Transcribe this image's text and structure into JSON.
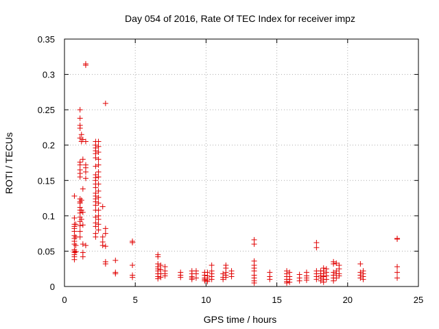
{
  "chart_data": {
    "type": "scatter",
    "title": "Day 054 of 2016, Rate Of TEC Index for receiver impz",
    "xlabel": "GPS time / hours",
    "ylabel": "ROTI / TECUs",
    "xlim": [
      0,
      25
    ],
    "ylim": [
      0,
      0.35
    ],
    "xticks": [
      "0",
      "5",
      "10",
      "15",
      "20",
      "25"
    ],
    "yticks": [
      "0",
      "0.05",
      "0.1",
      "0.15",
      "0.2",
      "0.25",
      "0.3",
      "0.35"
    ],
    "grid": true,
    "marker": "+",
    "marker_color": "#e00000",
    "series": [
      {
        "name": "ROTI",
        "points": [
          [
            0.7,
            0.128
          ],
          [
            0.7,
            0.097
          ],
          [
            0.7,
            0.088
          ],
          [
            0.7,
            0.085
          ],
          [
            0.7,
            0.082
          ],
          [
            0.7,
            0.078
          ],
          [
            0.7,
            0.072
          ],
          [
            0.7,
            0.068
          ],
          [
            0.7,
            0.064
          ],
          [
            0.7,
            0.06
          ],
          [
            0.7,
            0.052
          ],
          [
            0.7,
            0.05
          ],
          [
            0.7,
            0.048
          ],
          [
            0.7,
            0.045
          ],
          [
            0.7,
            0.042
          ],
          [
            0.7,
            0.038
          ],
          [
            0.8,
            0.088
          ],
          [
            0.8,
            0.07
          ],
          [
            0.8,
            0.058
          ],
          [
            0.8,
            0.049
          ],
          [
            1.1,
            0.25
          ],
          [
            1.1,
            0.238
          ],
          [
            1.1,
            0.228
          ],
          [
            1.1,
            0.224
          ],
          [
            1.1,
            0.21
          ],
          [
            1.1,
            0.176
          ],
          [
            1.1,
            0.172
          ],
          [
            1.1,
            0.165
          ],
          [
            1.1,
            0.16
          ],
          [
            1.1,
            0.155
          ],
          [
            1.1,
            0.124
          ],
          [
            1.1,
            0.12
          ],
          [
            1.1,
            0.118
          ],
          [
            1.1,
            0.112
          ],
          [
            1.1,
            0.108
          ],
          [
            1.1,
            0.104
          ],
          [
            1.1,
            0.098
          ],
          [
            1.1,
            0.092
          ],
          [
            1.1,
            0.086
          ],
          [
            1.1,
            0.078
          ],
          [
            1.1,
            0.07
          ],
          [
            1.2,
            0.215
          ],
          [
            1.2,
            0.205
          ],
          [
            1.2,
            0.122
          ],
          [
            1.2,
            0.108
          ],
          [
            1.2,
            0.095
          ],
          [
            1.3,
            0.208
          ],
          [
            1.3,
            0.18
          ],
          [
            1.3,
            0.138
          ],
          [
            1.3,
            0.105
          ],
          [
            1.3,
            0.087
          ],
          [
            1.3,
            0.06
          ],
          [
            1.3,
            0.048
          ],
          [
            1.3,
            0.042
          ],
          [
            1.5,
            0.315
          ],
          [
            1.5,
            0.313
          ],
          [
            1.5,
            0.205
          ],
          [
            1.5,
            0.172
          ],
          [
            1.5,
            0.168
          ],
          [
            1.5,
            0.162
          ],
          [
            1.5,
            0.153
          ],
          [
            1.5,
            0.058
          ],
          [
            2.2,
            0.205
          ],
          [
            2.2,
            0.2
          ],
          [
            2.2,
            0.196
          ],
          [
            2.2,
            0.192
          ],
          [
            2.2,
            0.188
          ],
          [
            2.2,
            0.182
          ],
          [
            2.2,
            0.17
          ],
          [
            2.2,
            0.158
          ],
          [
            2.2,
            0.154
          ],
          [
            2.2,
            0.15
          ],
          [
            2.2,
            0.145
          ],
          [
            2.2,
            0.14
          ],
          [
            2.2,
            0.132
          ],
          [
            2.2,
            0.128
          ],
          [
            2.2,
            0.124
          ],
          [
            2.2,
            0.12
          ],
          [
            2.2,
            0.115
          ],
          [
            2.2,
            0.108
          ],
          [
            2.2,
            0.098
          ],
          [
            2.2,
            0.09
          ],
          [
            2.2,
            0.085
          ],
          [
            2.2,
            0.075
          ],
          [
            2.2,
            0.07
          ],
          [
            2.4,
            0.205
          ],
          [
            2.4,
            0.198
          ],
          [
            2.4,
            0.19
          ],
          [
            2.4,
            0.18
          ],
          [
            2.4,
            0.172
          ],
          [
            2.4,
            0.162
          ],
          [
            2.4,
            0.155
          ],
          [
            2.4,
            0.145
          ],
          [
            2.4,
            0.135
          ],
          [
            2.4,
            0.126
          ],
          [
            2.4,
            0.118
          ],
          [
            2.4,
            0.108
          ],
          [
            2.4,
            0.1
          ],
          [
            2.4,
            0.095
          ],
          [
            2.4,
            0.088
          ],
          [
            2.4,
            0.08
          ],
          [
            2.7,
            0.113
          ],
          [
            2.7,
            0.07
          ],
          [
            2.7,
            0.063
          ],
          [
            2.7,
            0.058
          ],
          [
            2.9,
            0.259
          ],
          [
            2.9,
            0.082
          ],
          [
            2.9,
            0.075
          ],
          [
            2.9,
            0.057
          ],
          [
            2.9,
            0.035
          ],
          [
            2.9,
            0.032
          ],
          [
            3.6,
            0.037
          ],
          [
            3.6,
            0.02
          ],
          [
            3.6,
            0.018
          ],
          [
            4.8,
            0.064
          ],
          [
            4.8,
            0.062
          ],
          [
            4.8,
            0.03
          ],
          [
            4.8,
            0.016
          ],
          [
            4.8,
            0.013
          ],
          [
            6.6,
            0.045
          ],
          [
            6.6,
            0.042
          ],
          [
            6.6,
            0.032
          ],
          [
            6.6,
            0.028
          ],
          [
            6.6,
            0.025
          ],
          [
            6.6,
            0.022
          ],
          [
            6.6,
            0.018
          ],
          [
            6.6,
            0.014
          ],
          [
            6.6,
            0.011
          ],
          [
            6.8,
            0.03
          ],
          [
            6.8,
            0.024
          ],
          [
            6.8,
            0.018
          ],
          [
            6.8,
            0.013
          ],
          [
            7.1,
            0.028
          ],
          [
            7.1,
            0.022
          ],
          [
            7.1,
            0.018
          ],
          [
            7.1,
            0.015
          ],
          [
            8.2,
            0.02
          ],
          [
            8.2,
            0.016
          ],
          [
            8.2,
            0.013
          ],
          [
            9.0,
            0.022
          ],
          [
            9.0,
            0.018
          ],
          [
            9.0,
            0.014
          ],
          [
            9.0,
            0.012
          ],
          [
            9.0,
            0.01
          ],
          [
            9.3,
            0.022
          ],
          [
            9.3,
            0.018
          ],
          [
            9.3,
            0.012
          ],
          [
            9.9,
            0.02
          ],
          [
            9.9,
            0.016
          ],
          [
            9.9,
            0.012
          ],
          [
            9.9,
            0.01
          ],
          [
            9.9,
            0.008
          ],
          [
            10.1,
            0.02
          ],
          [
            10.1,
            0.015
          ],
          [
            10.1,
            0.012
          ],
          [
            10.1,
            0.009
          ],
          [
            10.1,
            0.007
          ],
          [
            10.4,
            0.03
          ],
          [
            10.4,
            0.022
          ],
          [
            10.4,
            0.018
          ],
          [
            10.4,
            0.014
          ],
          [
            10.4,
            0.01
          ],
          [
            11.2,
            0.018
          ],
          [
            11.2,
            0.013
          ],
          [
            11.2,
            0.01
          ],
          [
            11.4,
            0.03
          ],
          [
            11.4,
            0.026
          ],
          [
            11.4,
            0.02
          ],
          [
            11.4,
            0.016
          ],
          [
            11.4,
            0.013
          ],
          [
            11.8,
            0.022
          ],
          [
            11.8,
            0.018
          ],
          [
            11.8,
            0.014
          ],
          [
            13.4,
            0.066
          ],
          [
            13.4,
            0.06
          ],
          [
            13.4,
            0.036
          ],
          [
            13.4,
            0.03
          ],
          [
            13.4,
            0.026
          ],
          [
            13.4,
            0.022
          ],
          [
            13.4,
            0.016
          ],
          [
            13.4,
            0.012
          ],
          [
            13.4,
            0.008
          ],
          [
            13.4,
            0.005
          ],
          [
            14.5,
            0.02
          ],
          [
            14.5,
            0.014
          ],
          [
            14.5,
            0.01
          ],
          [
            15.7,
            0.022
          ],
          [
            15.7,
            0.018
          ],
          [
            15.7,
            0.014
          ],
          [
            15.7,
            0.01
          ],
          [
            15.7,
            0.007
          ],
          [
            15.7,
            0.005
          ],
          [
            15.9,
            0.02
          ],
          [
            15.9,
            0.014
          ],
          [
            15.9,
            0.01
          ],
          [
            15.9,
            0.006
          ],
          [
            16.6,
            0.017
          ],
          [
            16.6,
            0.012
          ],
          [
            16.6,
            0.008
          ],
          [
            17.1,
            0.02
          ],
          [
            17.1,
            0.015
          ],
          [
            17.1,
            0.012
          ],
          [
            17.1,
            0.009
          ],
          [
            17.8,
            0.062
          ],
          [
            17.8,
            0.055
          ],
          [
            17.8,
            0.022
          ],
          [
            17.8,
            0.018
          ],
          [
            17.8,
            0.014
          ],
          [
            17.8,
            0.01
          ],
          [
            18.1,
            0.022
          ],
          [
            18.1,
            0.018
          ],
          [
            18.1,
            0.015
          ],
          [
            18.1,
            0.012
          ],
          [
            18.1,
            0.008
          ],
          [
            18.3,
            0.026
          ],
          [
            18.3,
            0.022
          ],
          [
            18.3,
            0.018
          ],
          [
            18.3,
            0.014
          ],
          [
            18.3,
            0.01
          ],
          [
            18.3,
            0.006
          ],
          [
            18.5,
            0.025
          ],
          [
            18.5,
            0.02
          ],
          [
            18.5,
            0.015
          ],
          [
            18.5,
            0.01
          ],
          [
            19.0,
            0.035
          ],
          [
            19.0,
            0.032
          ],
          [
            19.0,
            0.02
          ],
          [
            19.0,
            0.016
          ],
          [
            19.0,
            0.012
          ],
          [
            19.0,
            0.008
          ],
          [
            19.2,
            0.033
          ],
          [
            19.2,
            0.022
          ],
          [
            19.2,
            0.018
          ],
          [
            19.2,
            0.012
          ],
          [
            19.4,
            0.03
          ],
          [
            19.4,
            0.025
          ],
          [
            19.4,
            0.018
          ],
          [
            19.4,
            0.015
          ],
          [
            20.9,
            0.032
          ],
          [
            20.9,
            0.02
          ],
          [
            20.9,
            0.016
          ],
          [
            20.9,
            0.012
          ],
          [
            21.1,
            0.022
          ],
          [
            21.1,
            0.018
          ],
          [
            21.1,
            0.014
          ],
          [
            21.1,
            0.01
          ],
          [
            23.5,
            0.068
          ],
          [
            23.5,
            0.067
          ],
          [
            23.5,
            0.028
          ],
          [
            23.5,
            0.02
          ],
          [
            23.5,
            0.012
          ]
        ]
      }
    ]
  }
}
